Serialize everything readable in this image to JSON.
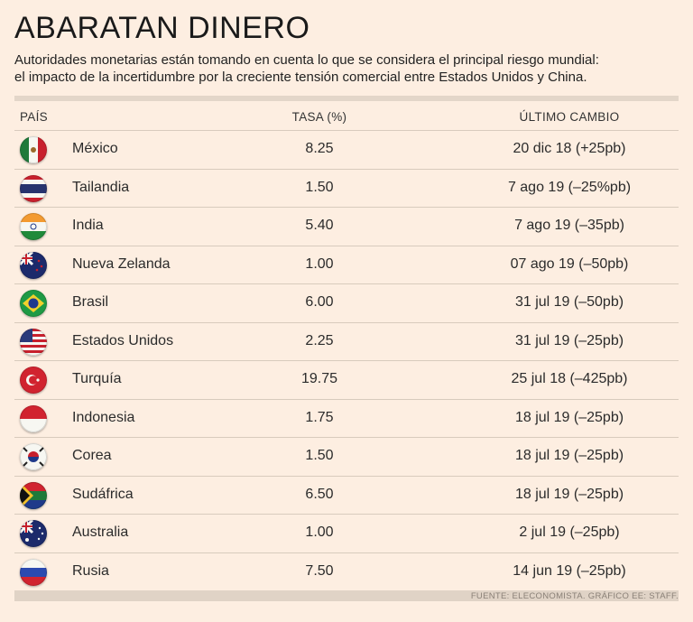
{
  "title": "ABARATAN DINERO",
  "subtitle": {
    "line1": "Autoridades monetarias están tomando en cuenta lo que se considera el principal riesgo mundial:",
    "line2": "el impacto de la incertidumbre por la creciente tensión comercial entre Estados Unidos y China."
  },
  "headers": {
    "country": "PAÍS",
    "rate": "TASA (%)",
    "change": "ÚLTIMO CAMBIO"
  },
  "source": "FUENTE: ELECONOMISTA. GRÁFICO EE: STAFF.",
  "chart_data": {
    "type": "table",
    "columns": [
      "PAÍS",
      "TASA (%)",
      "ÚLTIMO CAMBIO"
    ],
    "rows": [
      {
        "country": "México",
        "rate": "8.25",
        "change": "20 dic 18 (+25pb)",
        "flag": "mexico-flag-icon"
      },
      {
        "country": "Tailandia",
        "rate": "1.50",
        "change": "7 ago 19 (–25%pb)",
        "flag": "thailand-flag-icon"
      },
      {
        "country": "India",
        "rate": "5.40",
        "change": "7 ago 19 (–35pb)",
        "flag": "india-flag-icon"
      },
      {
        "country": "Nueva Zelanda",
        "rate": "1.00",
        "change": "07 ago 19 (–50pb)",
        "flag": "new-zealand-flag-icon"
      },
      {
        "country": "Brasil",
        "rate": "6.00",
        "change": "31 jul 19 (–50pb)",
        "flag": "brazil-flag-icon"
      },
      {
        "country": "Estados Unidos",
        "rate": "2.25",
        "change": "31 jul 19 (–25pb)",
        "flag": "usa-flag-icon"
      },
      {
        "country": "Turquía",
        "rate": "19.75",
        "change": "25 jul 18 (–425pb)",
        "flag": "turkey-flag-icon"
      },
      {
        "country": "Indonesia",
        "rate": "1.75",
        "change": "18 jul 19 (–25pb)",
        "flag": "indonesia-flag-icon"
      },
      {
        "country": "Corea",
        "rate": "1.50",
        "change": "18 jul 19 (–25pb)",
        "flag": "korea-flag-icon"
      },
      {
        "country": "Sudáfrica",
        "rate": "6.50",
        "change": "18 jul 19 (–25pb)",
        "flag": "south-africa-flag-icon"
      },
      {
        "country": "Australia",
        "rate": "1.00",
        "change": "2 jul 19 (–25pb)",
        "flag": "australia-flag-icon"
      },
      {
        "country": "Rusia",
        "rate": "7.50",
        "change": "14 jun 19 (–25pb)",
        "flag": "russia-flag-icon"
      }
    ]
  }
}
